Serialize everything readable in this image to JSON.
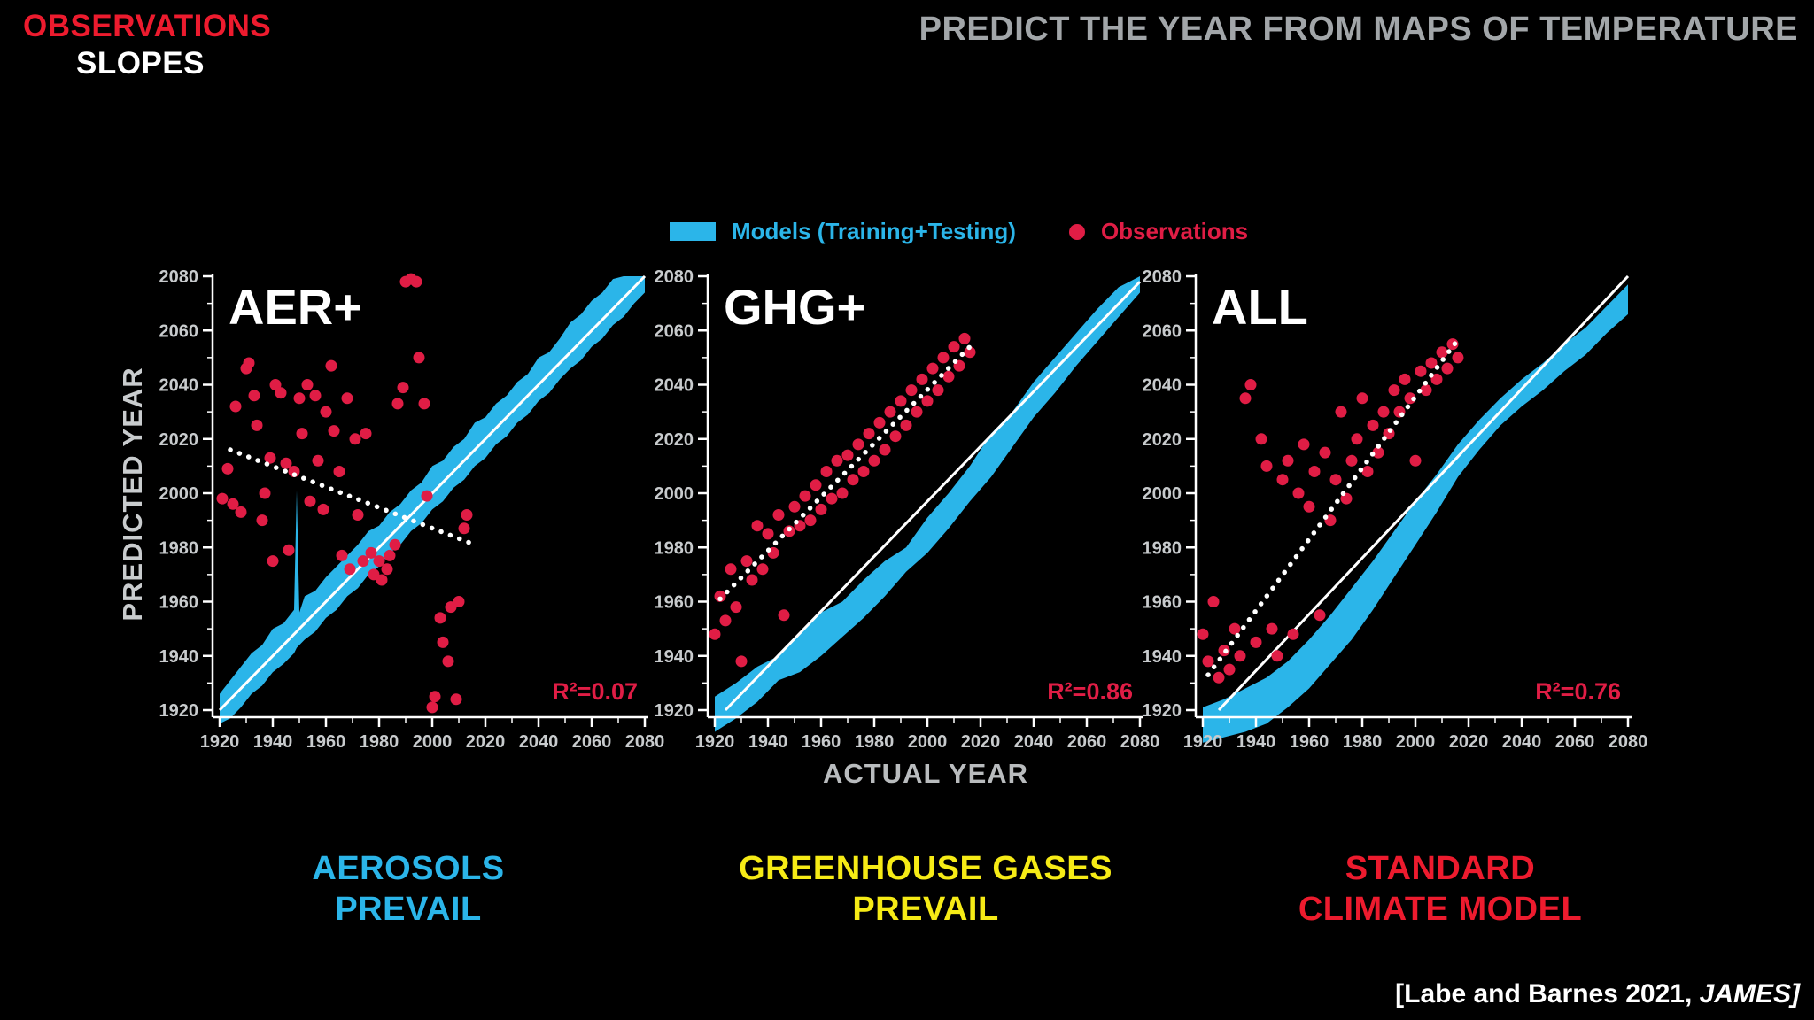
{
  "header": {
    "observations_label": "OBSERVATIONS",
    "slopes_label": "SLOPES",
    "title": "PREDICT THE YEAR FROM MAPS OF TEMPERATURE"
  },
  "legend": {
    "models_label": "Models (Training+Testing)",
    "observations_label": "Observations"
  },
  "axis": {
    "y_label": "PREDICTED YEAR",
    "x_label": "ACTUAL YEAR"
  },
  "captions": {
    "aer": {
      "line1": "AEROSOLS",
      "line2": "PREVAIL"
    },
    "ghg": {
      "line1": "GREENHOUSE GASES",
      "line2": "PREVAIL"
    },
    "all": {
      "line1": "STANDARD",
      "line2": "CLIMATE MODEL"
    }
  },
  "citation": {
    "text": "[Labe and Barnes 2021, ",
    "journal": "JAMES]"
  },
  "colors": {
    "models_cyan": "#2bb5e9",
    "observations_red": "#e01d45",
    "caption_yellow": "#f6eb16",
    "caption_red": "#ed1b2e",
    "title_gray": "#a2a6a9",
    "tick_label": "#c8cbcd",
    "axis_white": "#ffffff"
  },
  "chart_data": [
    {
      "type": "scatter",
      "title": "AER+",
      "r2_label": "R²=0.07",
      "xlabel": "ACTUAL YEAR",
      "ylabel": "PREDICTED YEAR",
      "xlim": [
        1920,
        2080
      ],
      "ylim": [
        1920,
        2080
      ],
      "ticks": [
        1920,
        1940,
        1960,
        1980,
        2000,
        2020,
        2040,
        2060,
        2080
      ],
      "legend": [
        "Models (Training+Testing)",
        "Observations"
      ],
      "identity_line": [
        [
          1920,
          1920
        ],
        [
          2080,
          2080
        ]
      ],
      "obs_trend_line": [
        [
          1924,
          2016
        ],
        [
          2016,
          1981
        ]
      ],
      "model_band": [
        [
          1920,
          1915,
          1926
        ],
        [
          1924,
          1917,
          1931
        ],
        [
          1928,
          1921,
          1936
        ],
        [
          1932,
          1926,
          1941
        ],
        [
          1936,
          1929,
          1944
        ],
        [
          1940,
          1934,
          1950
        ],
        [
          1944,
          1937,
          1952
        ],
        [
          1948,
          1941,
          1957
        ],
        [
          1949,
          1943,
          2001
        ],
        [
          1950,
          1944,
          1956
        ],
        [
          1952,
          1946,
          1962
        ],
        [
          1956,
          1949,
          1964
        ],
        [
          1960,
          1954,
          1969
        ],
        [
          1964,
          1957,
          1973
        ],
        [
          1968,
          1962,
          1977
        ],
        [
          1972,
          1965,
          1981
        ],
        [
          1976,
          1970,
          1986
        ],
        [
          1980,
          1973,
          1988
        ],
        [
          1984,
          1978,
          1993
        ],
        [
          1988,
          1981,
          1996
        ],
        [
          1992,
          1986,
          2001
        ],
        [
          1996,
          1989,
          2004
        ],
        [
          2000,
          1994,
          2010
        ],
        [
          2004,
          1997,
          2012
        ],
        [
          2008,
          2002,
          2017
        ],
        [
          2012,
          2005,
          2020
        ],
        [
          2016,
          2010,
          2026
        ],
        [
          2020,
          2013,
          2028
        ],
        [
          2024,
          2018,
          2033
        ],
        [
          2028,
          2021,
          2036
        ],
        [
          2032,
          2026,
          2041
        ],
        [
          2036,
          2029,
          2044
        ],
        [
          2040,
          2034,
          2050
        ],
        [
          2044,
          2037,
          2052
        ],
        [
          2048,
          2042,
          2057
        ],
        [
          2052,
          2046,
          2063
        ],
        [
          2056,
          2049,
          2066
        ],
        [
          2060,
          2054,
          2071
        ],
        [
          2064,
          2057,
          2074
        ],
        [
          2068,
          2062,
          2079
        ],
        [
          2072,
          2065,
          2080
        ],
        [
          2076,
          2070,
          2080
        ],
        [
          2080,
          2074,
          2080
        ]
      ],
      "observations": [
        [
          1921,
          1998
        ],
        [
          1923,
          2009
        ],
        [
          1925,
          1996
        ],
        [
          1926,
          2032
        ],
        [
          1928,
          1993
        ],
        [
          1930,
          2046
        ],
        [
          1931,
          2048
        ],
        [
          1933,
          2036
        ],
        [
          1934,
          2025
        ],
        [
          1936,
          1990
        ],
        [
          1937,
          2000
        ],
        [
          1939,
          2013
        ],
        [
          1940,
          1975
        ],
        [
          1941,
          2040
        ],
        [
          1943,
          2037
        ],
        [
          1945,
          2011
        ],
        [
          1946,
          1979
        ],
        [
          1948,
          2008
        ],
        [
          1950,
          2035
        ],
        [
          1951,
          2022
        ],
        [
          1953,
          2040
        ],
        [
          1954,
          1997
        ],
        [
          1956,
          2036
        ],
        [
          1957,
          2012
        ],
        [
          1959,
          1994
        ],
        [
          1960,
          2030
        ],
        [
          1962,
          2047
        ],
        [
          1963,
          2023
        ],
        [
          1965,
          2008
        ],
        [
          1966,
          1977
        ],
        [
          1968,
          2035
        ],
        [
          1969,
          1972
        ],
        [
          1971,
          2020
        ],
        [
          1972,
          1992
        ],
        [
          1974,
          1975
        ],
        [
          1975,
          2022
        ],
        [
          1977,
          1978
        ],
        [
          1978,
          1970
        ],
        [
          1980,
          1975
        ],
        [
          1981,
          1968
        ],
        [
          1983,
          1972
        ],
        [
          1984,
          1977
        ],
        [
          1986,
          1981
        ],
        [
          1987,
          2033
        ],
        [
          1989,
          2039
        ],
        [
          1990,
          2078
        ],
        [
          1992,
          2079
        ],
        [
          1994,
          2078
        ],
        [
          1995,
          2050
        ],
        [
          1997,
          2033
        ],
        [
          1998,
          1999
        ],
        [
          2000,
          1921
        ],
        [
          2001,
          1925
        ],
        [
          2003,
          1954
        ],
        [
          2004,
          1945
        ],
        [
          2006,
          1938
        ],
        [
          2007,
          1958
        ],
        [
          2009,
          1924
        ],
        [
          2010,
          1960
        ],
        [
          2012,
          1987
        ],
        [
          2013,
          1992
        ]
      ]
    },
    {
      "type": "scatter",
      "title": "GHG+",
      "r2_label": "R²=0.86",
      "xlabel": "ACTUAL YEAR",
      "ylabel": "PREDICTED YEAR",
      "xlim": [
        1920,
        2080
      ],
      "ylim": [
        1920,
        2080
      ],
      "ticks": [
        1920,
        1940,
        1960,
        1980,
        2000,
        2020,
        2040,
        2060,
        2080
      ],
      "legend": [
        "Models (Training+Testing)",
        "Observations"
      ],
      "identity_line": [
        [
          1924,
          1920
        ],
        [
          2080,
          2078
        ]
      ],
      "obs_trend_line": [
        [
          1922,
          1961
        ],
        [
          2018,
          2056
        ]
      ],
      "model_band": [
        [
          1920,
          1912,
          1925
        ],
        [
          1928,
          1917,
          1930
        ],
        [
          1936,
          1923,
          1936
        ],
        [
          1944,
          1931,
          1940
        ],
        [
          1952,
          1934,
          1948
        ],
        [
          1960,
          1940,
          1956
        ],
        [
          1968,
          1947,
          1960
        ],
        [
          1976,
          1954,
          1968
        ],
        [
          1984,
          1962,
          1975
        ],
        [
          1992,
          1971,
          1980
        ],
        [
          2000,
          1978,
          1991
        ],
        [
          2008,
          1987,
          2000
        ],
        [
          2016,
          1997,
          2010
        ],
        [
          2024,
          2006,
          2022
        ],
        [
          2032,
          2017,
          2030
        ],
        [
          2040,
          2028,
          2041
        ],
        [
          2048,
          2037,
          2050
        ],
        [
          2056,
          2047,
          2059
        ],
        [
          2064,
          2056,
          2068
        ],
        [
          2072,
          2065,
          2076
        ],
        [
          2080,
          2074,
          2080
        ]
      ],
      "observations": [
        [
          1920,
          1948
        ],
        [
          1922,
          1962
        ],
        [
          1924,
          1953
        ],
        [
          1926,
          1972
        ],
        [
          1928,
          1958
        ],
        [
          1930,
          1938
        ],
        [
          1932,
          1975
        ],
        [
          1934,
          1968
        ],
        [
          1936,
          1988
        ],
        [
          1938,
          1972
        ],
        [
          1940,
          1985
        ],
        [
          1942,
          1978
        ],
        [
          1944,
          1992
        ],
        [
          1946,
          1955
        ],
        [
          1948,
          1986
        ],
        [
          1950,
          1995
        ],
        [
          1952,
          1988
        ],
        [
          1954,
          1999
        ],
        [
          1956,
          1990
        ],
        [
          1958,
          2003
        ],
        [
          1960,
          1994
        ],
        [
          1962,
          2008
        ],
        [
          1964,
          1998
        ],
        [
          1966,
          2012
        ],
        [
          1968,
          2000
        ],
        [
          1970,
          2014
        ],
        [
          1972,
          2005
        ],
        [
          1974,
          2018
        ],
        [
          1976,
          2008
        ],
        [
          1978,
          2022
        ],
        [
          1980,
          2012
        ],
        [
          1982,
          2026
        ],
        [
          1984,
          2016
        ],
        [
          1986,
          2030
        ],
        [
          1988,
          2021
        ],
        [
          1990,
          2034
        ],
        [
          1992,
          2025
        ],
        [
          1994,
          2038
        ],
        [
          1996,
          2030
        ],
        [
          1998,
          2042
        ],
        [
          2000,
          2034
        ],
        [
          2002,
          2046
        ],
        [
          2004,
          2038
        ],
        [
          2006,
          2050
        ],
        [
          2008,
          2043
        ],
        [
          2010,
          2054
        ],
        [
          2012,
          2047
        ],
        [
          2014,
          2057
        ],
        [
          2016,
          2052
        ]
      ]
    },
    {
      "type": "scatter",
      "title": "ALL",
      "r2_label": "R²=0.76",
      "xlabel": "ACTUAL YEAR",
      "ylabel": "PREDICTED YEAR",
      "xlim": [
        1920,
        2080
      ],
      "ylim": [
        1920,
        2080
      ],
      "ticks": [
        1920,
        1940,
        1960,
        1980,
        2000,
        2020,
        2040,
        2060,
        2080
      ],
      "legend": [
        "Models (Training+Testing)",
        "Observations"
      ],
      "identity_line": [
        [
          1926,
          1920
        ],
        [
          2080,
          2080
        ]
      ],
      "obs_trend_line": [
        [
          1922,
          1933
        ],
        [
          2017,
          2058
        ]
      ],
      "model_band": [
        [
          1920,
          1908,
          1921
        ],
        [
          1928,
          1910,
          1924
        ],
        [
          1936,
          1912,
          1928
        ],
        [
          1944,
          1915,
          1932
        ],
        [
          1952,
          1921,
          1938
        ],
        [
          1960,
          1928,
          1946
        ],
        [
          1968,
          1937,
          1955
        ],
        [
          1976,
          1946,
          1965
        ],
        [
          1984,
          1957,
          1975
        ],
        [
          1992,
          1969,
          1986
        ],
        [
          2000,
          1981,
          1997
        ],
        [
          2008,
          1993,
          2007
        ],
        [
          2016,
          2006,
          2018
        ],
        [
          2024,
          2016,
          2027
        ],
        [
          2032,
          2025,
          2035
        ],
        [
          2040,
          2032,
          2042
        ],
        [
          2048,
          2038,
          2048
        ],
        [
          2056,
          2045,
          2055
        ],
        [
          2064,
          2051,
          2061
        ],
        [
          2072,
          2059,
          2069
        ],
        [
          2080,
          2066,
          2077
        ]
      ],
      "observations": [
        [
          1920,
          1948
        ],
        [
          1922,
          1938
        ],
        [
          1924,
          1960
        ],
        [
          1926,
          1932
        ],
        [
          1928,
          1942
        ],
        [
          1930,
          1935
        ],
        [
          1932,
          1950
        ],
        [
          1934,
          1940
        ],
        [
          1936,
          2035
        ],
        [
          1938,
          2040
        ],
        [
          1940,
          1945
        ],
        [
          1942,
          2020
        ],
        [
          1944,
          2010
        ],
        [
          1946,
          1950
        ],
        [
          1948,
          1940
        ],
        [
          1950,
          2005
        ],
        [
          1952,
          2012
        ],
        [
          1954,
          1948
        ],
        [
          1956,
          2000
        ],
        [
          1958,
          2018
        ],
        [
          1960,
          1995
        ],
        [
          1962,
          2008
        ],
        [
          1964,
          1955
        ],
        [
          1966,
          2015
        ],
        [
          1968,
          1990
        ],
        [
          1970,
          2005
        ],
        [
          1972,
          2030
        ],
        [
          1974,
          1998
        ],
        [
          1976,
          2012
        ],
        [
          1978,
          2020
        ],
        [
          1980,
          2035
        ],
        [
          1982,
          2008
        ],
        [
          1984,
          2025
        ],
        [
          1986,
          2015
        ],
        [
          1988,
          2030
        ],
        [
          1990,
          2022
        ],
        [
          1992,
          2038
        ],
        [
          1994,
          2030
        ],
        [
          1996,
          2042
        ],
        [
          1998,
          2035
        ],
        [
          2000,
          2012
        ],
        [
          2002,
          2045
        ],
        [
          2004,
          2038
        ],
        [
          2006,
          2048
        ],
        [
          2008,
          2042
        ],
        [
          2010,
          2052
        ],
        [
          2012,
          2046
        ],
        [
          2014,
          2055
        ],
        [
          2016,
          2050
        ]
      ]
    }
  ]
}
